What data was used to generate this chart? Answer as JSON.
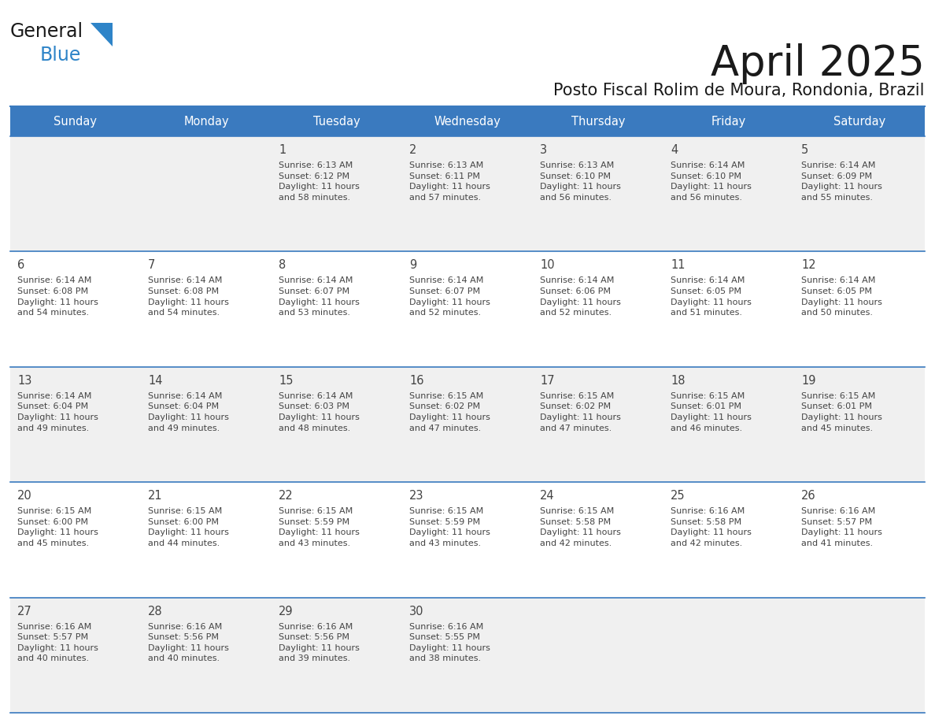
{
  "title": "April 2025",
  "subtitle": "Posto Fiscal Rolim de Moura, Rondonia, Brazil",
  "header_bg_color": "#3a7abf",
  "header_text_color": "#ffffff",
  "days_of_week": [
    "Sunday",
    "Monday",
    "Tuesday",
    "Wednesday",
    "Thursday",
    "Friday",
    "Saturday"
  ],
  "cell_bg_even": "#f0f0f0",
  "cell_bg_odd": "#ffffff",
  "divider_color": "#3a7abf",
  "text_color": "#444444",
  "title_color": "#1a1a1a",
  "logo_general_color": "#1a1a1a",
  "logo_blue_color": "#2e84c8",
  "weeks": [
    [
      {
        "day": null,
        "info": null
      },
      {
        "day": null,
        "info": null
      },
      {
        "day": 1,
        "info": "Sunrise: 6:13 AM\nSunset: 6:12 PM\nDaylight: 11 hours\nand 58 minutes."
      },
      {
        "day": 2,
        "info": "Sunrise: 6:13 AM\nSunset: 6:11 PM\nDaylight: 11 hours\nand 57 minutes."
      },
      {
        "day": 3,
        "info": "Sunrise: 6:13 AM\nSunset: 6:10 PM\nDaylight: 11 hours\nand 56 minutes."
      },
      {
        "day": 4,
        "info": "Sunrise: 6:14 AM\nSunset: 6:10 PM\nDaylight: 11 hours\nand 56 minutes."
      },
      {
        "day": 5,
        "info": "Sunrise: 6:14 AM\nSunset: 6:09 PM\nDaylight: 11 hours\nand 55 minutes."
      }
    ],
    [
      {
        "day": 6,
        "info": "Sunrise: 6:14 AM\nSunset: 6:08 PM\nDaylight: 11 hours\nand 54 minutes."
      },
      {
        "day": 7,
        "info": "Sunrise: 6:14 AM\nSunset: 6:08 PM\nDaylight: 11 hours\nand 54 minutes."
      },
      {
        "day": 8,
        "info": "Sunrise: 6:14 AM\nSunset: 6:07 PM\nDaylight: 11 hours\nand 53 minutes."
      },
      {
        "day": 9,
        "info": "Sunrise: 6:14 AM\nSunset: 6:07 PM\nDaylight: 11 hours\nand 52 minutes."
      },
      {
        "day": 10,
        "info": "Sunrise: 6:14 AM\nSunset: 6:06 PM\nDaylight: 11 hours\nand 52 minutes."
      },
      {
        "day": 11,
        "info": "Sunrise: 6:14 AM\nSunset: 6:05 PM\nDaylight: 11 hours\nand 51 minutes."
      },
      {
        "day": 12,
        "info": "Sunrise: 6:14 AM\nSunset: 6:05 PM\nDaylight: 11 hours\nand 50 minutes."
      }
    ],
    [
      {
        "day": 13,
        "info": "Sunrise: 6:14 AM\nSunset: 6:04 PM\nDaylight: 11 hours\nand 49 minutes."
      },
      {
        "day": 14,
        "info": "Sunrise: 6:14 AM\nSunset: 6:04 PM\nDaylight: 11 hours\nand 49 minutes."
      },
      {
        "day": 15,
        "info": "Sunrise: 6:14 AM\nSunset: 6:03 PM\nDaylight: 11 hours\nand 48 minutes."
      },
      {
        "day": 16,
        "info": "Sunrise: 6:15 AM\nSunset: 6:02 PM\nDaylight: 11 hours\nand 47 minutes."
      },
      {
        "day": 17,
        "info": "Sunrise: 6:15 AM\nSunset: 6:02 PM\nDaylight: 11 hours\nand 47 minutes."
      },
      {
        "day": 18,
        "info": "Sunrise: 6:15 AM\nSunset: 6:01 PM\nDaylight: 11 hours\nand 46 minutes."
      },
      {
        "day": 19,
        "info": "Sunrise: 6:15 AM\nSunset: 6:01 PM\nDaylight: 11 hours\nand 45 minutes."
      }
    ],
    [
      {
        "day": 20,
        "info": "Sunrise: 6:15 AM\nSunset: 6:00 PM\nDaylight: 11 hours\nand 45 minutes."
      },
      {
        "day": 21,
        "info": "Sunrise: 6:15 AM\nSunset: 6:00 PM\nDaylight: 11 hours\nand 44 minutes."
      },
      {
        "day": 22,
        "info": "Sunrise: 6:15 AM\nSunset: 5:59 PM\nDaylight: 11 hours\nand 43 minutes."
      },
      {
        "day": 23,
        "info": "Sunrise: 6:15 AM\nSunset: 5:59 PM\nDaylight: 11 hours\nand 43 minutes."
      },
      {
        "day": 24,
        "info": "Sunrise: 6:15 AM\nSunset: 5:58 PM\nDaylight: 11 hours\nand 42 minutes."
      },
      {
        "day": 25,
        "info": "Sunrise: 6:16 AM\nSunset: 5:58 PM\nDaylight: 11 hours\nand 42 minutes."
      },
      {
        "day": 26,
        "info": "Sunrise: 6:16 AM\nSunset: 5:57 PM\nDaylight: 11 hours\nand 41 minutes."
      }
    ],
    [
      {
        "day": 27,
        "info": "Sunrise: 6:16 AM\nSunset: 5:57 PM\nDaylight: 11 hours\nand 40 minutes."
      },
      {
        "day": 28,
        "info": "Sunrise: 6:16 AM\nSunset: 5:56 PM\nDaylight: 11 hours\nand 40 minutes."
      },
      {
        "day": 29,
        "info": "Sunrise: 6:16 AM\nSunset: 5:56 PM\nDaylight: 11 hours\nand 39 minutes."
      },
      {
        "day": 30,
        "info": "Sunrise: 6:16 AM\nSunset: 5:55 PM\nDaylight: 11 hours\nand 38 minutes."
      },
      {
        "day": null,
        "info": null
      },
      {
        "day": null,
        "info": null
      },
      {
        "day": null,
        "info": null
      }
    ]
  ]
}
